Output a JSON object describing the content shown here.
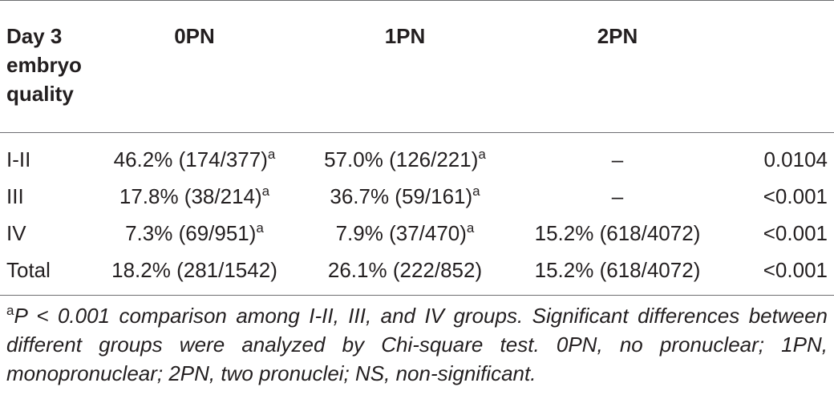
{
  "table": {
    "headers": {
      "col0": [
        "Day 3",
        "embryo",
        "quality"
      ],
      "col1": "0PN",
      "col2": "1PN",
      "col3": "2PN",
      "col4": ""
    },
    "rows": [
      {
        "label": "I-II",
        "c1": "46.2% (174/377)",
        "c1_mark": "a",
        "c2": "57.0% (126/221)",
        "c2_mark": "a",
        "c3": "–",
        "p": "0.0104"
      },
      {
        "label": "III",
        "c1": "17.8% (38/214)",
        "c1_mark": "a",
        "c2": "36.7% (59/161)",
        "c2_mark": "a",
        "c3": "–",
        "p": "<0.001"
      },
      {
        "label": "IV",
        "c1": "7.3% (69/951)",
        "c1_mark": "a",
        "c2": "7.9% (37/470)",
        "c2_mark": "a",
        "c3": "15.2% (618/4072)",
        "p": "<0.001"
      },
      {
        "label": "Total",
        "c1": "18.2% (281/1542)",
        "c1_mark": "",
        "c2": "26.1% (222/852)",
        "c2_mark": "",
        "c3": "15.2% (618/4072)",
        "p": "<0.001"
      }
    ]
  },
  "footnote": {
    "mark": "a",
    "p_symbol": "P",
    "text": " < 0.001 comparison among I-II, III, and IV groups. Significant differences between different groups were analyzed by Chi-square test. 0PN, no pronuclear; 1PN, monopronuclear; 2PN, two pronuclei; NS, non-significant."
  }
}
